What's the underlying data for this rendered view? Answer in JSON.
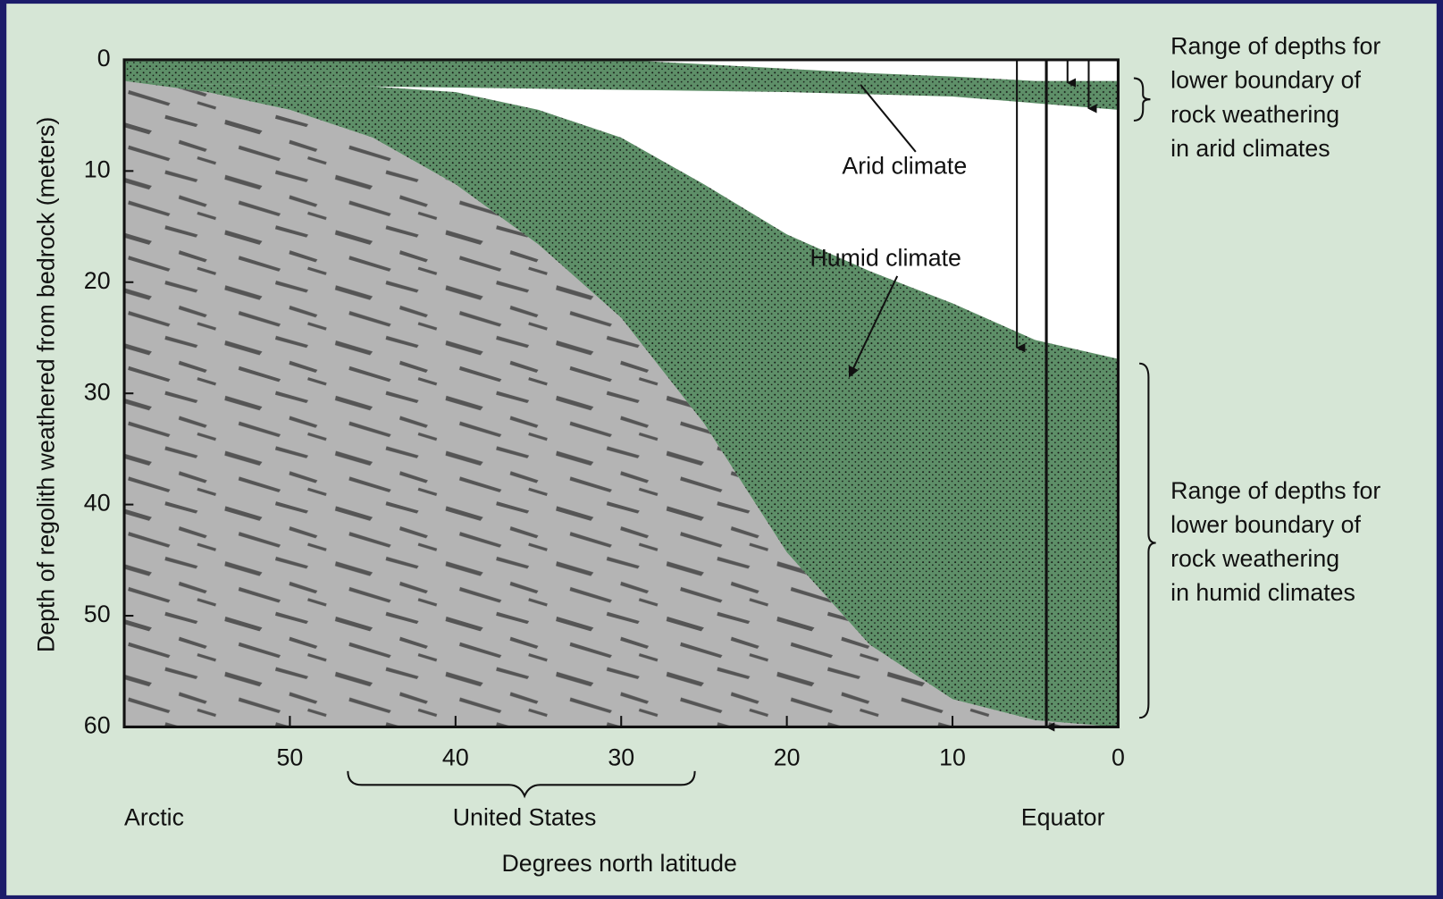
{
  "chart_data": {
    "type": "band-area",
    "ylabel": "Depth of regolith weathered from bedrock (meters)",
    "xlabel": "Degrees north latitude",
    "region_labels": [
      "Arctic",
      "United States",
      "Equator"
    ],
    "arid_range": [
      "Range of depths for",
      "lower boundary of",
      "rock weathering",
      "in arid climates"
    ],
    "humid_range": [
      "Range of depths for",
      "lower boundary of",
      "rock weathering",
      "in humid climates"
    ],
    "xlim": [
      60,
      0
    ],
    "xticks": [
      50,
      40,
      30,
      20,
      10,
      0
    ],
    "ylim": [
      0,
      60
    ],
    "yticks": [
      0,
      10,
      20,
      30,
      40,
      50,
      60
    ],
    "y_inverted": true,
    "x": [
      60,
      55,
      50,
      45,
      40,
      35,
      30,
      25,
      20,
      15,
      10,
      5,
      0
    ],
    "series": [
      {
        "name": "Humid climate",
        "color": "#5e8f68",
        "top": [
          1.9,
          2.2,
          2.3,
          2.4,
          2.9,
          4.5,
          7,
          11.2,
          15.7,
          19,
          21.9,
          25.2,
          26.9
        ],
        "bottom": [
          1.9,
          2.9,
          4.5,
          7,
          11.2,
          16.6,
          23.2,
          32.7,
          44.3,
          52.6,
          57.5,
          59.4,
          60
        ]
      },
      {
        "name": "Arid climate",
        "color": "#5e8f68",
        "top": [
          0,
          0,
          0,
          0,
          0,
          0,
          0,
          0.4,
          0.8,
          1.2,
          1.5,
          1.9,
          1.9
        ],
        "bottom": [
          1.9,
          2.2,
          2.3,
          2.4,
          2.5,
          2.6,
          2.7,
          2.8,
          2.9,
          3.1,
          3.3,
          3.9,
          4.5
        ]
      }
    ]
  }
}
